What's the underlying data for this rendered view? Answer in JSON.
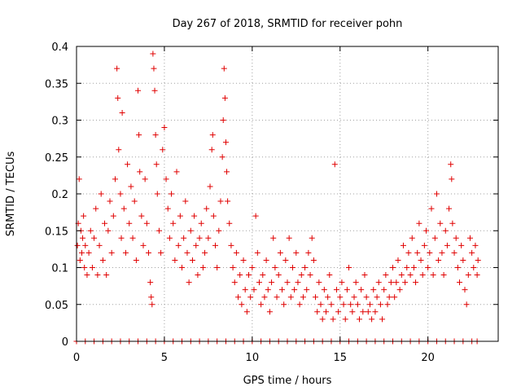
{
  "chart_data": {
    "type": "scatter",
    "title": "Day 267 of 2018, SRMTID for receiver pohn",
    "xlabel": "GPS time / hours",
    "ylabel": "SRMTID / TECUs",
    "xlim": [
      0,
      24
    ],
    "ylim": [
      0,
      0.4
    ],
    "xticks": [
      0,
      5,
      10,
      15,
      20
    ],
    "xtick_labels": [
      "0",
      "5",
      "10",
      "15",
      "20"
    ],
    "yticks": [
      0,
      0.05,
      0.1,
      0.15,
      0.2,
      0.25,
      0.3,
      0.35,
      0.4
    ],
    "ytick_labels": [
      "0",
      "0.05",
      "0.1",
      "0.15",
      "0.2",
      "0.25",
      "0.3",
      "0.35",
      "0.4"
    ],
    "grid": true,
    "marker": "plus",
    "color": "#e00000",
    "series": [
      {
        "name": "SRMTID",
        "points": [
          [
            0.05,
            0.13
          ],
          [
            0.1,
            0.16
          ],
          [
            0.15,
            0.22
          ],
          [
            0.2,
            0.11
          ],
          [
            0.25,
            0.15
          ],
          [
            0.3,
            0.12
          ],
          [
            0.35,
            0.14
          ],
          [
            0.4,
            0.17
          ],
          [
            0.45,
            0.1
          ],
          [
            0.5,
            0.13
          ],
          [
            0.6,
            0.09
          ],
          [
            0.7,
            0.12
          ],
          [
            0.8,
            0.15
          ],
          [
            0.9,
            0.1
          ],
          [
            1.0,
            0.14
          ],
          [
            1.1,
            0.18
          ],
          [
            1.2,
            0.09
          ],
          [
            1.3,
            0.13
          ],
          [
            1.4,
            0.2
          ],
          [
            1.5,
            0.11
          ],
          [
            1.6,
            0.16
          ],
          [
            1.7,
            0.09
          ],
          [
            1.8,
            0.15
          ],
          [
            1.9,
            0.19
          ],
          [
            2.0,
            0.12
          ],
          [
            2.1,
            0.17
          ],
          [
            2.2,
            0.22
          ],
          [
            2.3,
            0.37
          ],
          [
            2.35,
            0.33
          ],
          [
            2.4,
            0.26
          ],
          [
            2.5,
            0.2
          ],
          [
            2.55,
            0.14
          ],
          [
            2.6,
            0.31
          ],
          [
            2.7,
            0.18
          ],
          [
            2.8,
            0.12
          ],
          [
            2.9,
            0.24
          ],
          [
            3.0,
            0.16
          ],
          [
            3.1,
            0.21
          ],
          [
            3.2,
            0.14
          ],
          [
            3.3,
            0.19
          ],
          [
            3.4,
            0.11
          ],
          [
            3.5,
            0.34
          ],
          [
            3.55,
            0.28
          ],
          [
            3.6,
            0.23
          ],
          [
            3.7,
            0.17
          ],
          [
            3.8,
            0.13
          ],
          [
            3.9,
            0.22
          ],
          [
            4.0,
            0.16
          ],
          [
            4.1,
            0.12
          ],
          [
            4.2,
            0.08
          ],
          [
            4.25,
            0.06
          ],
          [
            4.3,
            0.05
          ],
          [
            4.35,
            0.39
          ],
          [
            4.4,
            0.37
          ],
          [
            4.45,
            0.34
          ],
          [
            4.5,
            0.28
          ],
          [
            4.55,
            0.24
          ],
          [
            4.6,
            0.2
          ],
          [
            4.7,
            0.15
          ],
          [
            4.8,
            0.12
          ],
          [
            4.9,
            0.26
          ],
          [
            5.0,
            0.29
          ],
          [
            5.1,
            0.22
          ],
          [
            5.2,
            0.18
          ],
          [
            5.3,
            0.14
          ],
          [
            5.4,
            0.2
          ],
          [
            5.5,
            0.16
          ],
          [
            5.6,
            0.11
          ],
          [
            5.7,
            0.23
          ],
          [
            5.8,
            0.13
          ],
          [
            5.9,
            0.17
          ],
          [
            6.0,
            0.1
          ],
          [
            6.1,
            0.14
          ],
          [
            6.2,
            0.19
          ],
          [
            6.3,
            0.12
          ],
          [
            6.4,
            0.08
          ],
          [
            6.5,
            0.15
          ],
          [
            6.6,
            0.11
          ],
          [
            6.7,
            0.17
          ],
          [
            6.8,
            0.13
          ],
          [
            6.9,
            0.09
          ],
          [
            7.0,
            0.14
          ],
          [
            7.1,
            0.16
          ],
          [
            7.2,
            0.1
          ],
          [
            7.3,
            0.12
          ],
          [
            7.4,
            0.18
          ],
          [
            7.5,
            0.14
          ],
          [
            7.6,
            0.21
          ],
          [
            7.7,
            0.26
          ],
          [
            7.75,
            0.28
          ],
          [
            7.8,
            0.17
          ],
          [
            7.9,
            0.13
          ],
          [
            8.0,
            0.1
          ],
          [
            8.1,
            0.15
          ],
          [
            8.2,
            0.19
          ],
          [
            8.3,
            0.25
          ],
          [
            8.35,
            0.3
          ],
          [
            8.4,
            0.37
          ],
          [
            8.45,
            0.33
          ],
          [
            8.5,
            0.27
          ],
          [
            8.55,
            0.23
          ],
          [
            8.6,
            0.19
          ],
          [
            8.7,
            0.16
          ],
          [
            8.8,
            0.13
          ],
          [
            8.9,
            0.1
          ],
          [
            9.0,
            0.08
          ],
          [
            9.1,
            0.12
          ],
          [
            9.2,
            0.06
          ],
          [
            9.3,
            0.09
          ],
          [
            9.4,
            0.05
          ],
          [
            9.5,
            0.11
          ],
          [
            9.6,
            0.07
          ],
          [
            9.7,
            0.04
          ],
          [
            9.8,
            0.09
          ],
          [
            9.9,
            0.06
          ],
          [
            10.0,
            0.1
          ],
          [
            10.1,
            0.07
          ],
          [
            10.2,
            0.17
          ],
          [
            10.3,
            0.12
          ],
          [
            10.4,
            0.08
          ],
          [
            10.5,
            0.05
          ],
          [
            10.6,
            0.09
          ],
          [
            10.7,
            0.06
          ],
          [
            10.8,
            0.11
          ],
          [
            10.9,
            0.07
          ],
          [
            11.0,
            0.04
          ],
          [
            11.1,
            0.08
          ],
          [
            11.2,
            0.14
          ],
          [
            11.3,
            0.1
          ],
          [
            11.4,
            0.06
          ],
          [
            11.5,
            0.09
          ],
          [
            11.6,
            0.12
          ],
          [
            11.7,
            0.07
          ],
          [
            11.8,
            0.05
          ],
          [
            11.9,
            0.11
          ],
          [
            12.0,
            0.08
          ],
          [
            12.1,
            0.14
          ],
          [
            12.2,
            0.06
          ],
          [
            12.3,
            0.1
          ],
          [
            12.4,
            0.07
          ],
          [
            12.5,
            0.12
          ],
          [
            12.6,
            0.08
          ],
          [
            12.7,
            0.05
          ],
          [
            12.8,
            0.09
          ],
          [
            12.9,
            0.06
          ],
          [
            13.0,
            0.1
          ],
          [
            13.1,
            0.07
          ],
          [
            13.2,
            0.12
          ],
          [
            13.3,
            0.09
          ],
          [
            13.4,
            0.14
          ],
          [
            13.5,
            0.11
          ],
          [
            13.6,
            0.06
          ],
          [
            13.7,
            0.04
          ],
          [
            13.8,
            0.08
          ],
          [
            13.9,
            0.05
          ],
          [
            14.0,
            0.03
          ],
          [
            14.1,
            0.07
          ],
          [
            14.2,
            0.04
          ],
          [
            14.3,
            0.06
          ],
          [
            14.4,
            0.09
          ],
          [
            14.5,
            0.05
          ],
          [
            14.6,
            0.03
          ],
          [
            14.7,
            0.24
          ],
          [
            14.8,
            0.07
          ],
          [
            14.9,
            0.04
          ],
          [
            15.0,
            0.06
          ],
          [
            15.1,
            0.08
          ],
          [
            15.2,
            0.05
          ],
          [
            15.3,
            0.03
          ],
          [
            15.4,
            0.07
          ],
          [
            15.5,
            0.1
          ],
          [
            15.6,
            0.05
          ],
          [
            15.7,
            0.04
          ],
          [
            15.8,
            0.06
          ],
          [
            15.9,
            0.08
          ],
          [
            16.0,
            0.05
          ],
          [
            16.1,
            0.03
          ],
          [
            16.2,
            0.07
          ],
          [
            16.3,
            0.04
          ],
          [
            16.4,
            0.09
          ],
          [
            16.5,
            0.06
          ],
          [
            16.6,
            0.04
          ],
          [
            16.7,
            0.05
          ],
          [
            16.8,
            0.03
          ],
          [
            16.9,
            0.07
          ],
          [
            17.0,
            0.04
          ],
          [
            17.1,
            0.06
          ],
          [
            17.2,
            0.08
          ],
          [
            17.3,
            0.05
          ],
          [
            17.4,
            0.03
          ],
          [
            17.5,
            0.07
          ],
          [
            17.6,
            0.09
          ],
          [
            17.7,
            0.05
          ],
          [
            17.8,
            0.06
          ],
          [
            17.9,
            0.08
          ],
          [
            18.0,
            0.1
          ],
          [
            18.1,
            0.06
          ],
          [
            18.2,
            0.08
          ],
          [
            18.3,
            0.11
          ],
          [
            18.4,
            0.07
          ],
          [
            18.5,
            0.09
          ],
          [
            18.6,
            0.13
          ],
          [
            18.7,
            0.08
          ],
          [
            18.8,
            0.1
          ],
          [
            18.9,
            0.12
          ],
          [
            19.0,
            0.09
          ],
          [
            19.1,
            0.14
          ],
          [
            19.2,
            0.1
          ],
          [
            19.3,
            0.08
          ],
          [
            19.4,
            0.12
          ],
          [
            19.5,
            0.16
          ],
          [
            19.6,
            0.11
          ],
          [
            19.7,
            0.09
          ],
          [
            19.8,
            0.13
          ],
          [
            19.9,
            0.15
          ],
          [
            20.0,
            0.1
          ],
          [
            20.1,
            0.12
          ],
          [
            20.2,
            0.18
          ],
          [
            20.3,
            0.09
          ],
          [
            20.4,
            0.14
          ],
          [
            20.5,
            0.2
          ],
          [
            20.6,
            0.11
          ],
          [
            20.7,
            0.16
          ],
          [
            20.8,
            0.12
          ],
          [
            20.9,
            0.09
          ],
          [
            21.0,
            0.15
          ],
          [
            21.1,
            0.13
          ],
          [
            21.2,
            0.18
          ],
          [
            21.3,
            0.24
          ],
          [
            21.35,
            0.22
          ],
          [
            21.4,
            0.16
          ],
          [
            21.5,
            0.12
          ],
          [
            21.6,
            0.14
          ],
          [
            21.7,
            0.1
          ],
          [
            21.8,
            0.08
          ],
          [
            21.9,
            0.13
          ],
          [
            22.0,
            0.11
          ],
          [
            22.1,
            0.07
          ],
          [
            22.2,
            0.05
          ],
          [
            22.3,
            0.09
          ],
          [
            22.4,
            0.14
          ],
          [
            22.5,
            0.12
          ],
          [
            22.6,
            0.1
          ],
          [
            22.7,
            0.13
          ],
          [
            22.8,
            0.09
          ],
          [
            22.85,
            0.11
          ],
          [
            0.0,
            0
          ],
          [
            0.5,
            0
          ],
          [
            1.0,
            0
          ],
          [
            1.5,
            0
          ],
          [
            2.0,
            0
          ],
          [
            2.5,
            0
          ],
          [
            3.0,
            0
          ],
          [
            3.5,
            0
          ],
          [
            4.0,
            0
          ],
          [
            4.5,
            0
          ],
          [
            5.0,
            0
          ],
          [
            5.5,
            0
          ],
          [
            6.0,
            0
          ],
          [
            6.5,
            0
          ],
          [
            7.0,
            0
          ],
          [
            7.5,
            0
          ],
          [
            8.0,
            0
          ],
          [
            8.5,
            0
          ],
          [
            9.0,
            0
          ],
          [
            9.5,
            0
          ],
          [
            10.0,
            0
          ],
          [
            10.5,
            0
          ],
          [
            11.0,
            0
          ],
          [
            11.5,
            0
          ],
          [
            12.0,
            0
          ],
          [
            12.5,
            0
          ],
          [
            13.0,
            0
          ],
          [
            13.5,
            0
          ],
          [
            14.0,
            0
          ],
          [
            14.5,
            0
          ],
          [
            15.0,
            0
          ],
          [
            15.5,
            0
          ],
          [
            16.0,
            0
          ],
          [
            16.5,
            0
          ],
          [
            17.0,
            0
          ],
          [
            17.5,
            0
          ],
          [
            18.0,
            0
          ],
          [
            18.5,
            0
          ],
          [
            19.0,
            0
          ],
          [
            19.5,
            0
          ],
          [
            20.0,
            0
          ],
          [
            20.5,
            0
          ],
          [
            21.0,
            0
          ],
          [
            21.5,
            0
          ],
          [
            22.0,
            0
          ],
          [
            22.5,
            0
          ],
          [
            22.8,
            0
          ]
        ]
      }
    ]
  }
}
